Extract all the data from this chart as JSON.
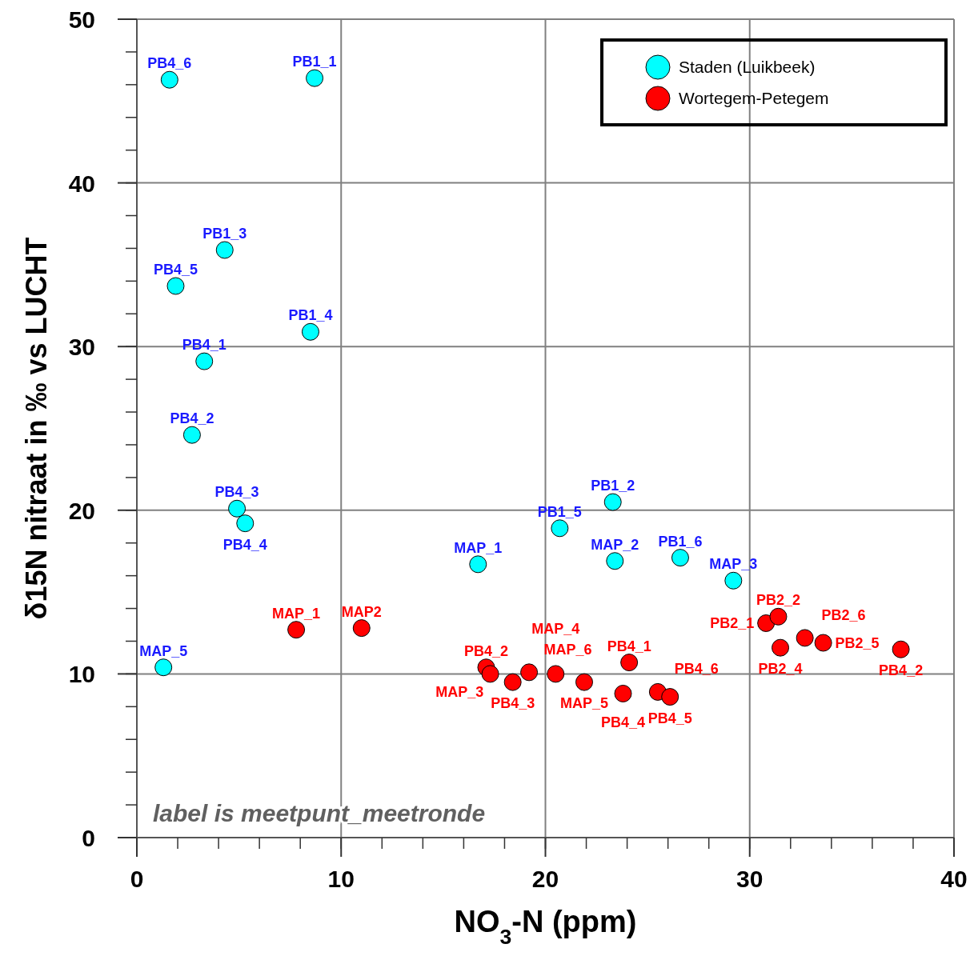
{
  "chart_data": {
    "type": "scatter",
    "xlabel": "NO$_{3}$-N (ppm)",
    "ylabel": "δ15N nitraat in ‰ vs LUCHT",
    "xlim": [
      0,
      40
    ],
    "ylim": [
      0,
      50
    ],
    "xticks": [
      0,
      10,
      20,
      30,
      40
    ],
    "yticks": [
      0,
      10,
      20,
      30,
      40,
      50
    ],
    "grid": true,
    "legend": "top right",
    "marker": "circle",
    "annotations": [
      "label is meetpunt_meetronde",
      {
        "text": "PB4_6",
        "x": 1.6,
        "y": 46.3
      },
      {
        "text": "PB1_1",
        "x": 8.7,
        "y": 46.4
      },
      {
        "text": "PB1_3",
        "x": 4.3,
        "y": 35.9
      },
      {
        "text": "PB4_5",
        "x": 1.9,
        "y": 33.7
      },
      {
        "text": "PB1_4",
        "x": 8.5,
        "y": 30.9
      },
      {
        "text": "PB4_1",
        "x": 3.3,
        "y": 29.1
      },
      {
        "text": "PB4_2",
        "x": 2.7,
        "y": 24.6
      },
      {
        "text": "PB4_3",
        "x": 4.9,
        "y": 20.1
      },
      {
        "text": "PB4_4",
        "x": 5.3,
        "y": 19.2
      },
      {
        "text": "MAP_5",
        "x": 1.3,
        "y": 10.4
      },
      {
        "text": "MAP_1",
        "x": 16.7,
        "y": 16.7
      },
      {
        "text": "PB1_5",
        "x": 20.7,
        "y": 18.9
      },
      {
        "text": "PB1_2",
        "x": 23.3,
        "y": 20.5
      },
      {
        "text": "MAP_2",
        "x": 23.4,
        "y": 16.9
      },
      {
        "text": "PB1_6",
        "x": 26.6,
        "y": 17.1
      },
      {
        "text": "MAP_3",
        "x": 29.2,
        "y": 15.7
      },
      {
        "text": "MAP_1",
        "x": 7.8,
        "y": 12.7
      },
      {
        "text": "MAP2",
        "x": 11.0,
        "y": 12.8
      },
      {
        "text": "PB4_2",
        "x": 17.1,
        "y": 10.4
      },
      {
        "text": "MAP_3",
        "x": 17.3,
        "y": 10.0
      },
      {
        "text": "PB4_3",
        "x": 18.4,
        "y": 9.5
      },
      {
        "text": "MAP_6",
        "x": 19.2,
        "y": 10.1
      },
      {
        "text": "MAP_4",
        "x": 20.5,
        "y": 10.0
      },
      {
        "text": "MAP_5",
        "x": 21.9,
        "y": 9.5
      },
      {
        "text": "PB4_1",
        "x": 24.1,
        "y": 10.7
      },
      {
        "text": "PB4_4",
        "x": 23.8,
        "y": 8.8
      },
      {
        "text": "PB4_6",
        "x": 25.5,
        "y": 8.9
      },
      {
        "text": "PB4_5",
        "x": 26.1,
        "y": 8.6
      },
      {
        "text": "PB2_1",
        "x": 30.8,
        "y": 13.1
      },
      {
        "text": "PB2_2",
        "x": 31.4,
        "y": 13.5
      },
      {
        "text": "PB2_4",
        "x": 31.5,
        "y": 11.6
      },
      {
        "text": "PB2_6",
        "x": 32.7,
        "y": 12.2
      },
      {
        "text": "PB2_5",
        "x": 33.6,
        "y": 11.9
      },
      {
        "text": "PB4_2",
        "x": 37.4,
        "y": 11.5
      }
    ],
    "series": [
      {
        "name": "Staden (Luikbeek)",
        "color": "#00ffff",
        "x": [
          1.6,
          8.7,
          4.3,
          1.9,
          8.5,
          3.3,
          2.7,
          4.9,
          5.3,
          1.3,
          16.7,
          20.7,
          23.3,
          23.4,
          26.6,
          29.2
        ],
        "values": [
          46.3,
          46.4,
          35.9,
          33.7,
          30.9,
          29.1,
          24.6,
          20.1,
          19.2,
          10.4,
          16.7,
          18.9,
          20.5,
          16.9,
          17.1,
          15.7
        ]
      },
      {
        "name": "Wortegem-Petegem",
        "color": "#ff0000",
        "x": [
          7.8,
          11.0,
          17.1,
          17.3,
          18.4,
          19.2,
          20.5,
          21.9,
          24.1,
          23.8,
          25.5,
          26.1,
          30.8,
          31.4,
          31.5,
          32.7,
          33.6,
          37.4
        ],
        "values": [
          12.7,
          12.8,
          10.4,
          10.0,
          9.5,
          10.1,
          10.0,
          9.5,
          10.7,
          8.8,
          8.9,
          8.6,
          13.1,
          13.5,
          11.6,
          12.2,
          11.9,
          11.5
        ]
      }
    ]
  }
}
